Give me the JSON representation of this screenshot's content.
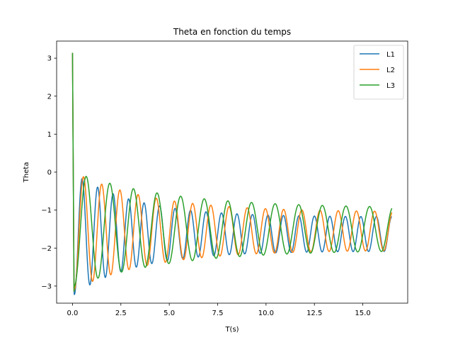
{
  "chart_data": {
    "type": "line",
    "title": "Theta en fonction du temps",
    "xlabel": "T(s)",
    "ylabel": "Theta",
    "xlim": [
      -0.82,
      17.32
    ],
    "ylim": [
      -3.45,
      3.45
    ],
    "xticks": [
      0,
      2.5,
      5,
      7.5,
      10,
      12.5,
      15
    ],
    "xtick_labels": [
      "0.0",
      "2.5",
      "5.0",
      "7.5",
      "10.0",
      "12.5",
      "15.0"
    ],
    "yticks": [
      -3,
      -2,
      -1,
      0,
      1,
      2,
      3
    ],
    "ytick_labels": [
      "−3",
      "−2",
      "−1",
      "0",
      "1",
      "2",
      "3"
    ],
    "grid": false,
    "legend_position": "top-right",
    "legend_entries": [
      "L1",
      "L2",
      "L3"
    ],
    "series": [
      {
        "name": "L1",
        "color": "#1f77b4",
        "model": {
          "start": 3.14,
          "drop_end": 0.08,
          "trough": -3.14,
          "center": -1.63,
          "amp0": 1.6,
          "amp_end": 0.45,
          "decay_tau": 3.2,
          "period": 0.8,
          "phase_t": 0.1,
          "t_end": 16.5
        },
        "extrema": [
          [
            0,
            3.14
          ],
          [
            0.08,
            -3.14
          ],
          [
            0.45,
            -0.3
          ],
          [
            0.8,
            -2.7
          ],
          [
            1.15,
            -0.5
          ],
          [
            1.55,
            -2.55
          ],
          [
            2.7,
            -0.8
          ],
          [
            4.1,
            -2.35
          ],
          [
            5.2,
            -1.1
          ],
          [
            6.6,
            -2.2
          ],
          [
            8.2,
            -1.2
          ],
          [
            9.4,
            -2.15
          ],
          [
            11.1,
            -1.25
          ],
          [
            12.5,
            -2.1
          ],
          [
            14.0,
            -1.25
          ],
          [
            15.8,
            -2.05
          ],
          [
            16.5,
            -1.95
          ]
        ]
      },
      {
        "name": "L2",
        "color": "#ff7f0e",
        "model": {
          "start": 3.14,
          "drop_end": 0.08,
          "trough": -3.14,
          "center": -1.55,
          "amp0": 1.55,
          "amp_end": 0.5,
          "decay_tau": 4.0,
          "period": 0.94,
          "phase_t": 0.1,
          "t_end": 16.5
        },
        "extrema": [
          [
            0,
            3.14
          ],
          [
            0.08,
            -3.14
          ],
          [
            0.55,
            -0.1
          ],
          [
            1.1,
            -2.9
          ],
          [
            1.6,
            -0.35
          ],
          [
            2.1,
            -2.85
          ],
          [
            2.7,
            -0.5
          ],
          [
            3.2,
            -2.75
          ],
          [
            4.0,
            -0.7
          ],
          [
            6.6,
            -2.45
          ],
          [
            8.5,
            -1.0
          ],
          [
            10.0,
            -2.3
          ],
          [
            11.9,
            -1.0
          ],
          [
            13.8,
            -2.2
          ],
          [
            15.4,
            -1.05
          ],
          [
            16.5,
            -2.0
          ]
        ]
      },
      {
        "name": "L3",
        "color": "#2ca02c",
        "model": {
          "start": 3.14,
          "drop_end": 0.08,
          "trough": -3.14,
          "center": -1.5,
          "amp0": 1.5,
          "amp_end": 0.55,
          "decay_tau": 5.0,
          "period": 1.22,
          "phase_t": 0.1,
          "t_end": 16.5
        },
        "extrema": [
          [
            0,
            3.14
          ],
          [
            0.08,
            -3.14
          ],
          [
            0.7,
            0.0
          ],
          [
            1.3,
            -3.0
          ],
          [
            1.95,
            -0.25
          ],
          [
            2.6,
            -2.85
          ],
          [
            3.15,
            -0.4
          ],
          [
            3.9,
            -2.7
          ],
          [
            4.5,
            -0.5
          ],
          [
            5.1,
            -2.6
          ],
          [
            7.0,
            -0.85
          ],
          [
            8.4,
            -2.4
          ],
          [
            10.5,
            -0.9
          ],
          [
            12.3,
            -2.3
          ],
          [
            14.0,
            -0.9
          ],
          [
            15.8,
            -2.2
          ],
          [
            16.5,
            -1.1
          ]
        ]
      }
    ]
  }
}
